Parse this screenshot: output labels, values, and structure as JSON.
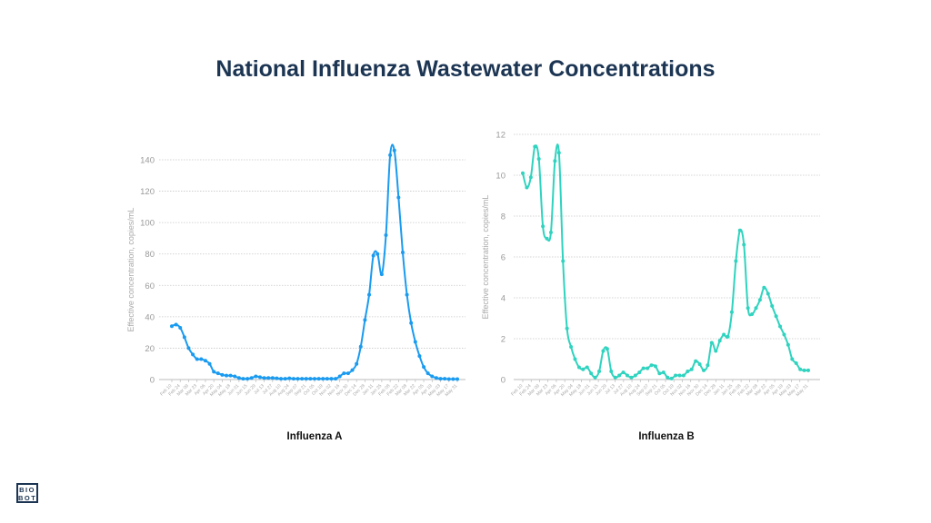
{
  "title": "National Influenza Wastewater Concentrations",
  "logo": {
    "line1": "BIO",
    "line2": "BOT"
  },
  "chart_data": [
    {
      "type": "line",
      "title": "Influenza A",
      "ylabel": "Effective concentration, copies/mL",
      "xlabel": "",
      "ylim": [
        0,
        140
      ],
      "yticks": [
        0,
        20,
        40,
        60,
        80,
        100,
        120,
        140
      ],
      "color": "#1a9bf0",
      "grid": true,
      "xtick_labels": [
        "Feb 10",
        "Feb 24",
        "Mar 09",
        "Mar 23",
        "Apr 06",
        "Apr 20",
        "May 04",
        "May 18",
        "Jun 01",
        "Jun 15",
        "Jun 29",
        "Jul 13",
        "Jul 27",
        "Aug 10",
        "Aug 24",
        "Sep 07",
        "Sep 21",
        "Oct 05",
        "Oct 19",
        "Nov 02",
        "Nov 16",
        "Nov 30",
        "Dec 14",
        "Dec 28",
        "Jan 11",
        "Jan 25",
        "Feb 08",
        "Feb 22",
        "Mar 08",
        "Mar 22",
        "Apr 05",
        "Apr 19",
        "May 03",
        "May 17",
        "May 31"
      ],
      "values": [
        34,
        35,
        33,
        27,
        20,
        16,
        13,
        13,
        12,
        10,
        5,
        4,
        3,
        2.5,
        2.5,
        2,
        1,
        0.5,
        0.5,
        1,
        2,
        1.5,
        1,
        1,
        1,
        0.8,
        0.5,
        0.5,
        0.8,
        0.5,
        0.5,
        0.5,
        0.5,
        0.5,
        0.5,
        0.5,
        0.5,
        0.5,
        0.5,
        0.5,
        2,
        4,
        4,
        6,
        10,
        21,
        38,
        54,
        79,
        80,
        67,
        92,
        143,
        146,
        116,
        81,
        54,
        36,
        24,
        15,
        8,
        4,
        2,
        1,
        0.5,
        0.5,
        0.3,
        0.3,
        0.3
      ]
    },
    {
      "type": "line",
      "title": "Influenza B",
      "ylabel": "Effective concentration, copies/mL",
      "xlabel": "",
      "ylim": [
        0,
        12
      ],
      "yticks": [
        0,
        2,
        4,
        6,
        8,
        10,
        12
      ],
      "color": "#2fd3bf",
      "grid": true,
      "xtick_labels": [
        "Feb 10",
        "Feb 24",
        "Mar 09",
        "Mar 23",
        "Apr 06",
        "Apr 20",
        "May 04",
        "May 18",
        "Jun 01",
        "Jun 15",
        "Jun 29",
        "Jul 13",
        "Jul 27",
        "Aug 10",
        "Aug 24",
        "Sep 07",
        "Sep 21",
        "Oct 05",
        "Oct 19",
        "Nov 02",
        "Nov 16",
        "Nov 30",
        "Dec 14",
        "Dec 28",
        "Jan 11",
        "Jan 25",
        "Feb 08",
        "Feb 22",
        "Mar 08",
        "Mar 22",
        "Apr 05",
        "Apr 19",
        "May 03",
        "May 17",
        "May 31"
      ],
      "values": [
        10.1,
        9.4,
        9.9,
        11.4,
        10.8,
        7.5,
        6.9,
        7.2,
        10.7,
        11.1,
        5.8,
        2.5,
        1.6,
        1.0,
        0.6,
        0.5,
        0.6,
        0.3,
        0.1,
        0.4,
        1.4,
        1.5,
        0.4,
        0.1,
        0.2,
        0.35,
        0.2,
        0.1,
        0.2,
        0.35,
        0.55,
        0.55,
        0.7,
        0.65,
        0.3,
        0.35,
        0.1,
        0.05,
        0.2,
        0.2,
        0.2,
        0.4,
        0.5,
        0.9,
        0.75,
        0.45,
        0.7,
        1.8,
        1.4,
        1.9,
        2.2,
        2.1,
        3.3,
        5.8,
        7.3,
        6.6,
        3.5,
        3.2,
        3.5,
        3.9,
        4.5,
        4.2,
        3.6,
        3.1,
        2.6,
        2.2,
        1.7,
        1.0,
        0.8,
        0.5,
        0.45,
        0.45
      ]
    }
  ]
}
